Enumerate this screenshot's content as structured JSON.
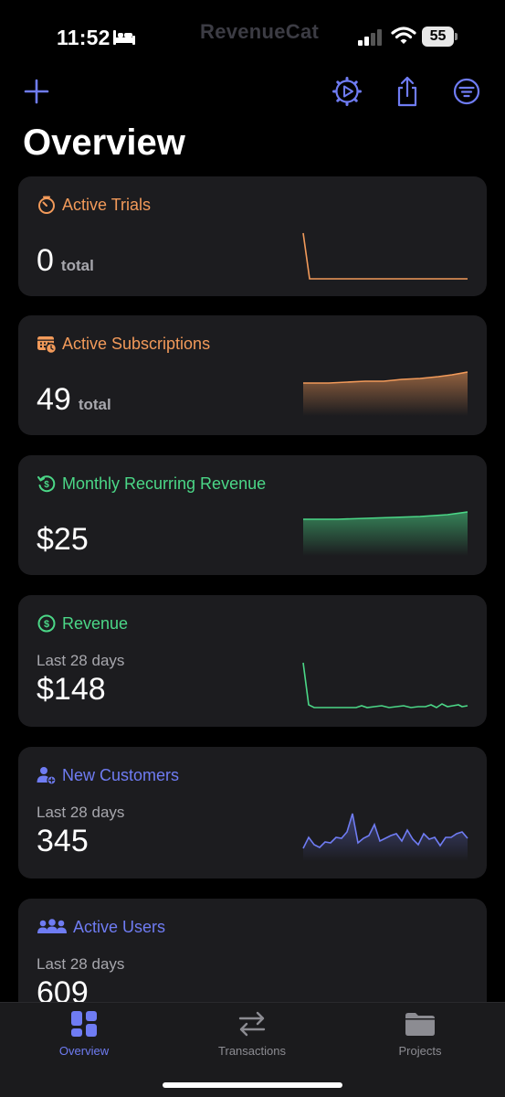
{
  "status_bar": {
    "time": "11:52",
    "brand": "RevenueCat",
    "battery": "55"
  },
  "page_title": "Overview",
  "colors": {
    "accent": "#6f7cf3",
    "orange": "#f29a5a",
    "green": "#4bd787",
    "card_bg": "#1c1c1f"
  },
  "cards": {
    "active_trials": {
      "title": "Active Trials",
      "value": "0",
      "unit": "total",
      "icon": "timer-icon"
    },
    "active_subscriptions": {
      "title": "Active Subscriptions",
      "value": "49",
      "unit": "total",
      "icon": "calendar-icon"
    },
    "mrr": {
      "title": "Monthly Recurring Revenue",
      "value": "$25",
      "icon": "recurring-dollar-icon"
    },
    "revenue": {
      "title": "Revenue",
      "period": "Last 28 days",
      "value": "$148",
      "icon": "dollar-circle-icon"
    },
    "new_customers": {
      "title": "New Customers",
      "period": "Last 28 days",
      "value": "345",
      "icon": "add-person-icon"
    },
    "active_users": {
      "title": "Active Users",
      "period": "Last 28 days",
      "value": "609",
      "icon": "group-icon"
    }
  },
  "tabs": [
    {
      "label": "Overview",
      "icon": "dashboard-icon",
      "active": true
    },
    {
      "label": "Transactions",
      "icon": "swap-arrows-icon",
      "active": false
    },
    {
      "label": "Projects",
      "icon": "folder-icon",
      "active": false
    }
  ]
}
